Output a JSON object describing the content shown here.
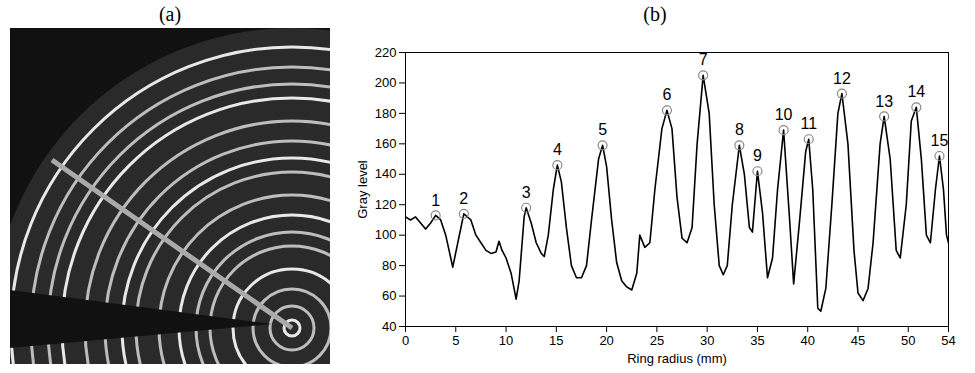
{
  "image": {
    "label": "(a)"
  },
  "chart_data": {
    "type": "line",
    "title": "(b)",
    "x_label": "Ring radius (mm)",
    "y_label": "Gray level",
    "xlim": [
      0,
      54
    ],
    "xticks": [
      0,
      5,
      10,
      15,
      20,
      25,
      30,
      35,
      40,
      45,
      50,
      54
    ],
    "ylim": [
      40,
      220
    ],
    "yticks": [
      40,
      60,
      80,
      100,
      120,
      140,
      160,
      180,
      200,
      220
    ],
    "grid": false,
    "color": "#000000",
    "x": [
      0,
      0.5,
      1,
      1.5,
      2,
      2.5,
      3,
      3.5,
      4,
      4.5,
      4.7,
      5.2,
      5.8,
      6.5,
      7,
      7.5,
      8,
      8.5,
      9,
      9.3,
      9.6,
      10,
      10.5,
      11,
      11.3,
      11.8,
      12,
      12.5,
      13,
      13.5,
      13.8,
      14.2,
      14.7,
      15.1,
      15.5,
      16,
      16.5,
      17,
      17.5,
      18,
      18.5,
      19.2,
      19.6,
      20,
      20.5,
      21,
      21.5,
      22,
      22.5,
      23,
      23.3,
      23.8,
      24.3,
      24.8,
      25.5,
      26,
      26.5,
      27,
      27.5,
      28,
      28.5,
      29,
      29.6,
      30.2,
      30.7,
      31.2,
      31.6,
      32,
      32.5,
      33.2,
      33.7,
      34.2,
      34.5,
      35,
      35.5,
      36,
      36.5,
      37,
      37.6,
      38.2,
      38.6,
      39.2,
      39.8,
      40.1,
      40.5,
      41,
      41.3,
      41.8,
      42.4,
      43,
      43.4,
      44,
      44.6,
      45,
      45.5,
      46,
      46.5,
      47.2,
      47.6,
      48.2,
      48.8,
      49.2,
      49.8,
      50.3,
      50.8,
      51.3,
      51.8,
      52.2,
      52.7,
      53.1,
      53.5,
      53.8,
      54
    ],
    "values": [
      112,
      110,
      112,
      108,
      104,
      108,
      113,
      110,
      100,
      85,
      79,
      95,
      114,
      110,
      100,
      95,
      90,
      88,
      89,
      96,
      90,
      85,
      75,
      58,
      70,
      112,
      118,
      108,
      95,
      88,
      86,
      100,
      130,
      146,
      135,
      105,
      80,
      72,
      72,
      80,
      110,
      150,
      159,
      145,
      110,
      82,
      70,
      66,
      64,
      75,
      100,
      92,
      95,
      130,
      170,
      182,
      170,
      125,
      98,
      95,
      105,
      160,
      205,
      180,
      120,
      80,
      74,
      80,
      120,
      159,
      140,
      105,
      102,
      142,
      115,
      72,
      85,
      130,
      169,
      110,
      68,
      110,
      155,
      163,
      130,
      52,
      50,
      65,
      120,
      180,
      193,
      160,
      90,
      62,
      57,
      65,
      95,
      160,
      178,
      150,
      90,
      85,
      120,
      175,
      184,
      150,
      100,
      95,
      130,
      152,
      130,
      100,
      95
    ],
    "peaks": {
      "marker": "circle",
      "labels": [
        "1",
        "2",
        "3",
        "4",
        "5",
        "6",
        "7",
        "8",
        "9",
        "10",
        "11",
        "12",
        "13",
        "14",
        "15"
      ],
      "x": [
        3,
        5.8,
        12,
        15.1,
        19.6,
        26,
        29.6,
        33.2,
        35,
        37.6,
        40.1,
        43.4,
        47.6,
        50.8,
        53.1
      ],
      "values": [
        113,
        114,
        118,
        146,
        159,
        182,
        205,
        159,
        142,
        169,
        163,
        193,
        178,
        184,
        152
      ]
    }
  }
}
